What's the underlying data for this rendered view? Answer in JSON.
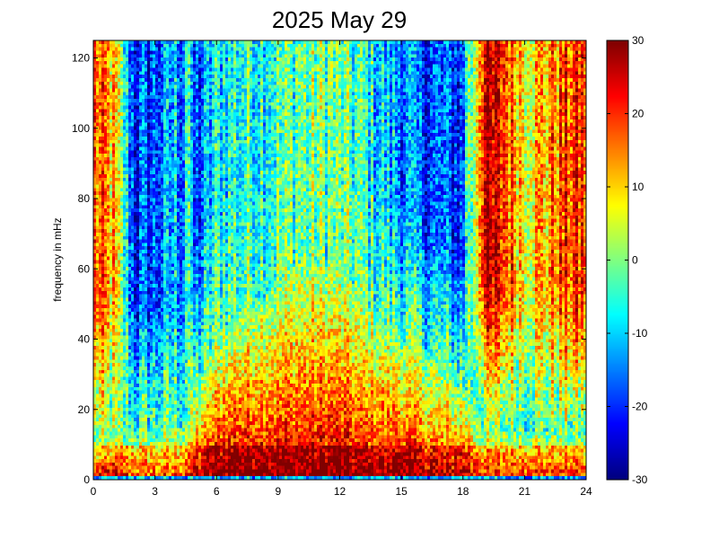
{
  "chart_data": {
    "type": "heatmap",
    "title": "2025 May 29",
    "xlabel": "",
    "ylabel": "frequency in mHz",
    "xlim": [
      0,
      24
    ],
    "ylim": [
      0,
      125
    ],
    "x_ticks": [
      0,
      3,
      6,
      9,
      12,
      15,
      18,
      21,
      24
    ],
    "y_ticks": [
      0,
      20,
      40,
      60,
      80,
      100,
      120
    ],
    "colorbar": {
      "range": [
        -30,
        30
      ],
      "ticks": [
        -30,
        -20,
        -10,
        0,
        10,
        20,
        30
      ],
      "colormap": "jet"
    },
    "grid": "off",
    "intensity_profile": {
      "hours": [
        0,
        1,
        2,
        3,
        4,
        4.5,
        5,
        6,
        7,
        8,
        9,
        10,
        11,
        12,
        13,
        14,
        15,
        16,
        17,
        18,
        19,
        20,
        21,
        22,
        23,
        24
      ],
      "low_band_level": [
        18,
        20,
        15,
        12,
        12,
        14,
        20,
        25,
        27,
        27,
        25,
        25,
        26,
        26,
        24,
        24,
        25,
        22,
        20,
        22,
        15,
        16,
        16,
        15,
        14,
        14
      ],
      "rolloff_mhz": [
        8,
        12,
        12,
        12,
        14,
        15,
        25,
        40,
        48,
        50,
        55,
        62,
        62,
        60,
        52,
        45,
        40,
        35,
        30,
        25,
        15,
        14,
        14,
        14,
        13,
        13
      ],
      "high_freq_level": [
        18,
        10,
        -20,
        -18,
        -12,
        -15,
        -20,
        -8,
        -6,
        -5,
        -4,
        -2,
        0,
        -2,
        -5,
        -10,
        -14,
        -18,
        -18,
        -20,
        25,
        20,
        10,
        12,
        18,
        20
      ]
    },
    "notable_features": {
      "low_band_mhz": [
        1,
        10
      ],
      "bright_streak_hours": [
        1.0,
        4.6,
        18.2,
        22.3,
        22.9
      ]
    }
  }
}
